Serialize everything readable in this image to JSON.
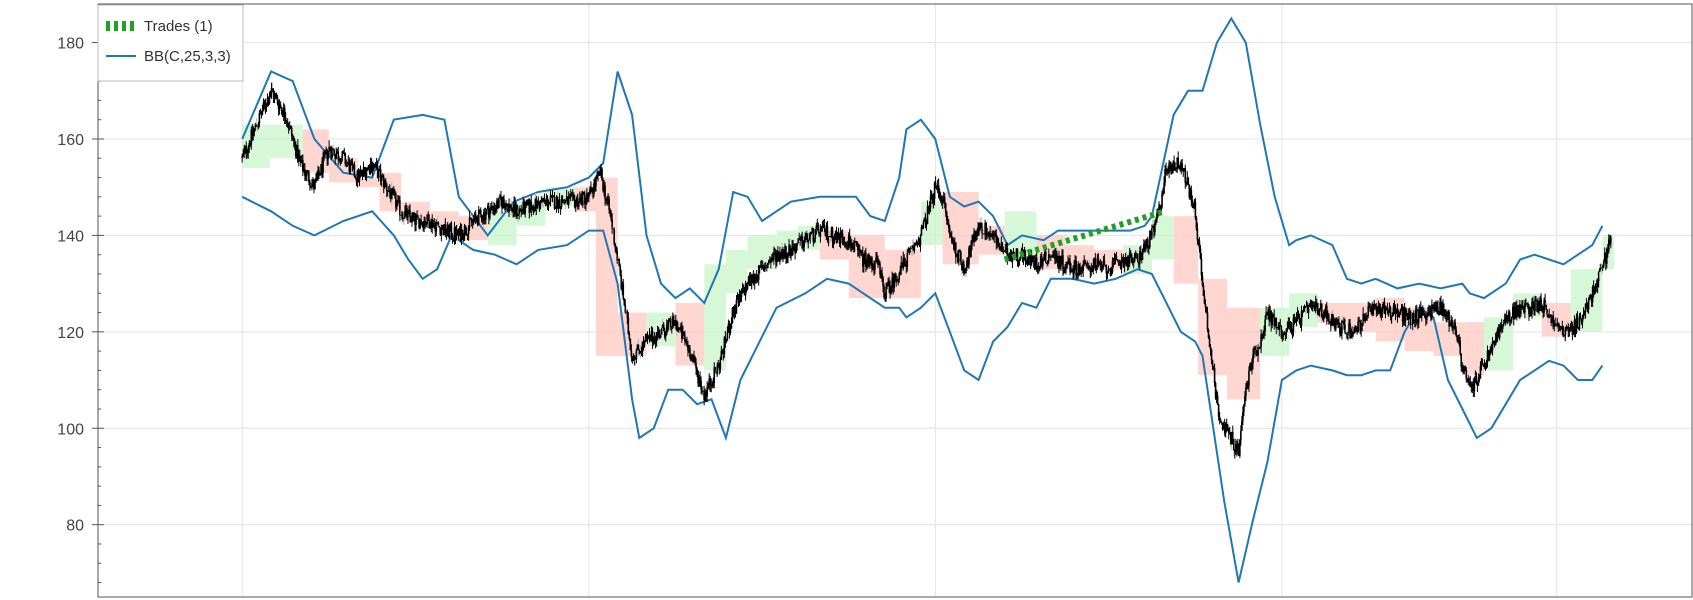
{
  "chart_data": {
    "type": "candlestick",
    "ylim": [
      65,
      188
    ],
    "xlim": [
      0,
      100
    ],
    "yticks": [
      80,
      100,
      120,
      140,
      160,
      180
    ],
    "xgrid": [
      5,
      29,
      53,
      77,
      96
    ],
    "grid": true,
    "legend": {
      "position": "top-left",
      "entries": [
        {
          "label": "Trades (1)",
          "color": "#1fa21f",
          "style": "dashed"
        },
        {
          "label": "BB(C,25,3,3)",
          "color": "#1f77b4",
          "style": "solid"
        }
      ]
    },
    "trade": {
      "entry": [
        57.8,
        135
      ],
      "exit": [
        68.9,
        145
      ]
    },
    "upper_band": [
      [
        5,
        160
      ],
      [
        7,
        174
      ],
      [
        8.5,
        172
      ],
      [
        10,
        160
      ],
      [
        12,
        153
      ],
      [
        14,
        152
      ],
      [
        15.5,
        164
      ],
      [
        17.5,
        165
      ],
      [
        19,
        164
      ],
      [
        20,
        148
      ],
      [
        22,
        140
      ],
      [
        23.8,
        147
      ],
      [
        25.5,
        149
      ],
      [
        27.5,
        150
      ],
      [
        29,
        152
      ],
      [
        30,
        155
      ],
      [
        31,
        174
      ],
      [
        32,
        165
      ],
      [
        33,
        140
      ],
      [
        34,
        130
      ],
      [
        35,
        127
      ],
      [
        36,
        129
      ],
      [
        37,
        126
      ],
      [
        38,
        133
      ],
      [
        39,
        149
      ],
      [
        40,
        148
      ],
      [
        41,
        143
      ],
      [
        42,
        145
      ],
      [
        43,
        147
      ],
      [
        45,
        148
      ],
      [
        47.5,
        148
      ],
      [
        48.5,
        144
      ],
      [
        49.5,
        143
      ],
      [
        50.5,
        152
      ],
      [
        51,
        162
      ],
      [
        52,
        164
      ],
      [
        53,
        160
      ],
      [
        54,
        148
      ],
      [
        55,
        146
      ],
      [
        56,
        147
      ],
      [
        57,
        144
      ],
      [
        58,
        138
      ],
      [
        59,
        140
      ],
      [
        60.5,
        139
      ],
      [
        61.5,
        141
      ],
      [
        63,
        141
      ],
      [
        64.5,
        141
      ],
      [
        66.5,
        141
      ],
      [
        67.5,
        142
      ],
      [
        68,
        144
      ],
      [
        69,
        158
      ],
      [
        69.5,
        165
      ],
      [
        70.5,
        170
      ],
      [
        71.5,
        170
      ],
      [
        72.5,
        180
      ],
      [
        73.5,
        185
      ],
      [
        74.5,
        180
      ],
      [
        75.5,
        163
      ],
      [
        76.5,
        148
      ],
      [
        77.5,
        138
      ],
      [
        78,
        139
      ],
      [
        79,
        140
      ],
      [
        80.5,
        138
      ],
      [
        81.5,
        131
      ],
      [
        82.5,
        130
      ],
      [
        83.5,
        131
      ],
      [
        85,
        129
      ],
      [
        86.5,
        130
      ],
      [
        88,
        129
      ],
      [
        89.5,
        130
      ],
      [
        90,
        128
      ],
      [
        91,
        127
      ],
      [
        92.5,
        130
      ],
      [
        93.5,
        135
      ],
      [
        94.5,
        136
      ],
      [
        95.5,
        135
      ],
      [
        96.5,
        134
      ],
      [
        97.5,
        136
      ],
      [
        98.5,
        138
      ],
      [
        99.2,
        142
      ]
    ],
    "lower_band": [
      [
        5,
        148
      ],
      [
        7,
        145
      ],
      [
        8.5,
        142
      ],
      [
        10,
        140
      ],
      [
        12,
        143
      ],
      [
        14,
        145
      ],
      [
        15.5,
        140
      ],
      [
        16.5,
        135
      ],
      [
        17.5,
        131
      ],
      [
        18.5,
        133
      ],
      [
        19.5,
        140
      ],
      [
        21,
        137
      ],
      [
        22.5,
        136
      ],
      [
        24,
        134
      ],
      [
        25.5,
        137
      ],
      [
        27.5,
        138
      ],
      [
        29,
        141
      ],
      [
        30,
        141
      ],
      [
        31,
        130
      ],
      [
        32,
        106
      ],
      [
        32.5,
        98
      ],
      [
        33.5,
        100
      ],
      [
        34.5,
        108
      ],
      [
        35.5,
        108
      ],
      [
        36.5,
        105
      ],
      [
        37.5,
        106
      ],
      [
        38.5,
        98
      ],
      [
        39.5,
        110
      ],
      [
        41,
        119
      ],
      [
        42,
        125
      ],
      [
        44,
        128
      ],
      [
        45.5,
        131
      ],
      [
        47,
        130
      ],
      [
        48.5,
        127
      ],
      [
        49.5,
        125
      ],
      [
        50.5,
        125
      ],
      [
        51,
        123
      ],
      [
        52,
        125
      ],
      [
        53,
        128
      ],
      [
        54,
        120
      ],
      [
        55,
        112
      ],
      [
        56,
        110
      ],
      [
        57,
        118
      ],
      [
        58,
        121
      ],
      [
        59,
        126
      ],
      [
        60,
        125
      ],
      [
        61,
        131
      ],
      [
        62.5,
        131
      ],
      [
        64,
        130
      ],
      [
        65.5,
        131
      ],
      [
        67,
        133
      ],
      [
        68,
        132
      ],
      [
        69,
        126
      ],
      [
        70,
        120
      ],
      [
        71,
        118
      ],
      [
        71.5,
        115
      ],
      [
        72,
        105
      ],
      [
        73,
        85
      ],
      [
        74,
        68
      ],
      [
        75,
        81
      ],
      [
        76,
        93
      ],
      [
        77,
        110
      ],
      [
        78,
        112
      ],
      [
        79,
        113
      ],
      [
        80.5,
        112
      ],
      [
        81.5,
        111
      ],
      [
        82.5,
        111
      ],
      [
        83.5,
        112
      ],
      [
        84.5,
        112
      ],
      [
        85.5,
        120
      ],
      [
        86.5,
        125
      ],
      [
        87.5,
        123
      ],
      [
        88.5,
        110
      ],
      [
        89.5,
        104
      ],
      [
        90.5,
        98
      ],
      [
        91.5,
        100
      ],
      [
        92.5,
        105
      ],
      [
        93.5,
        110
      ],
      [
        94.5,
        112
      ],
      [
        95.5,
        114
      ],
      [
        96.5,
        113
      ],
      [
        97.5,
        110
      ],
      [
        98.5,
        110
      ],
      [
        99.2,
        113
      ]
    ],
    "boxes": [
      [
        5,
        6.9,
        154,
        163
      ],
      [
        6.9,
        9.2,
        156,
        163
      ],
      [
        9.2,
        11,
        153,
        162
      ],
      [
        11,
        13,
        151,
        156
      ],
      [
        13,
        14.5,
        150,
        152
      ],
      [
        14.5,
        16,
        145,
        153
      ],
      [
        16,
        18,
        143,
        147
      ],
      [
        18,
        20,
        142,
        145
      ],
      [
        20,
        22,
        139,
        144
      ],
      [
        22,
        24,
        138,
        145
      ],
      [
        24,
        26,
        142,
        147
      ],
      [
        26,
        28,
        146,
        150
      ],
      [
        28,
        29.5,
        145,
        150
      ],
      [
        29.5,
        31,
        115,
        152
      ],
      [
        31,
        33,
        115,
        124
      ],
      [
        33,
        35,
        117,
        124
      ],
      [
        35,
        37,
        113,
        126
      ],
      [
        37,
        38.5,
        112,
        134
      ],
      [
        38.5,
        40,
        128,
        137
      ],
      [
        40,
        42,
        133,
        140
      ],
      [
        42,
        43.5,
        137,
        141
      ],
      [
        43.5,
        45,
        137,
        142
      ],
      [
        45,
        47,
        135,
        141
      ],
      [
        47,
        49.5,
        127,
        140
      ],
      [
        49.5,
        52,
        127,
        137
      ],
      [
        52,
        53.5,
        138,
        147
      ],
      [
        53.5,
        56,
        134,
        149
      ],
      [
        56,
        57.8,
        136,
        142
      ],
      [
        57.8,
        60,
        135,
        145
      ],
      [
        60,
        62,
        133,
        140
      ],
      [
        62,
        64,
        133,
        138
      ],
      [
        64,
        66,
        133,
        137
      ],
      [
        66,
        68,
        132,
        138
      ],
      [
        68,
        69.5,
        135,
        144
      ],
      [
        69.5,
        71.2,
        130,
        144
      ],
      [
        71.2,
        73.2,
        111,
        131
      ],
      [
        73.2,
        75.5,
        106,
        125
      ],
      [
        75.5,
        77.5,
        115,
        125
      ],
      [
        77.5,
        79.5,
        121,
        128
      ],
      [
        79.5,
        81.5,
        122,
        126
      ],
      [
        81.5,
        83.5,
        120,
        126
      ],
      [
        83.5,
        85.5,
        118,
        127
      ],
      [
        85.5,
        87.5,
        116,
        125
      ],
      [
        87.5,
        89.5,
        115,
        122
      ],
      [
        89.5,
        91,
        111,
        122
      ],
      [
        91,
        93,
        112,
        123
      ],
      [
        93,
        95,
        123,
        128
      ],
      [
        95,
        97,
        119,
        126
      ],
      [
        97,
        99.2,
        120,
        133
      ],
      [
        99.2,
        100,
        133,
        140
      ]
    ],
    "anchors": [
      [
        5,
        156
      ],
      [
        6,
        163
      ],
      [
        7,
        170
      ],
      [
        8,
        165
      ],
      [
        9,
        155
      ],
      [
        10,
        150
      ],
      [
        11,
        158
      ],
      [
        12,
        156
      ],
      [
        13,
        152
      ],
      [
        14,
        155
      ],
      [
        15,
        150
      ],
      [
        16,
        145
      ],
      [
        17,
        143
      ],
      [
        18,
        143
      ],
      [
        19,
        141
      ],
      [
        20,
        140
      ],
      [
        21,
        143
      ],
      [
        22,
        145
      ],
      [
        23,
        147
      ],
      [
        24,
        145
      ],
      [
        25,
        146
      ],
      [
        26,
        147
      ],
      [
        27,
        147
      ],
      [
        28,
        147
      ],
      [
        29,
        148
      ],
      [
        29.8,
        153
      ],
      [
        30.5,
        144
      ],
      [
        31,
        135
      ],
      [
        31.5,
        125
      ],
      [
        32,
        115
      ],
      [
        33,
        118
      ],
      [
        34,
        120
      ],
      [
        35,
        122
      ],
      [
        36,
        116
      ],
      [
        37,
        107
      ],
      [
        38,
        113
      ],
      [
        39,
        124
      ],
      [
        40,
        130
      ],
      [
        41,
        133
      ],
      [
        42,
        136
      ],
      [
        43,
        137
      ],
      [
        44,
        139
      ],
      [
        45,
        141
      ],
      [
        46,
        140
      ],
      [
        47,
        139
      ],
      [
        48,
        135
      ],
      [
        49,
        134
      ],
      [
        49.5,
        128
      ],
      [
        50,
        130
      ],
      [
        51,
        135
      ],
      [
        52,
        140
      ],
      [
        53,
        150
      ],
      [
        53.5,
        148
      ],
      [
        54,
        140
      ],
      [
        55,
        133
      ],
      [
        56,
        142
      ],
      [
        57,
        140
      ],
      [
        57.8,
        136
      ],
      [
        59,
        136
      ],
      [
        60,
        134
      ],
      [
        61,
        136
      ],
      [
        62,
        134
      ],
      [
        63,
        133
      ],
      [
        64,
        134
      ],
      [
        65,
        133
      ],
      [
        66,
        135
      ],
      [
        67,
        135
      ],
      [
        68,
        140
      ],
      [
        68.5,
        145
      ],
      [
        69,
        154
      ],
      [
        70,
        155
      ],
      [
        70.5,
        150
      ],
      [
        71,
        145
      ],
      [
        71.5,
        130
      ],
      [
        72,
        118
      ],
      [
        72.5,
        105
      ],
      [
        73,
        100
      ],
      [
        73.5,
        98
      ],
      [
        74,
        95
      ],
      [
        74.5,
        108
      ],
      [
        75,
        115
      ],
      [
        75.5,
        118
      ],
      [
        76,
        124
      ],
      [
        77,
        120
      ],
      [
        78,
        122
      ],
      [
        79,
        125
      ],
      [
        80,
        124
      ],
      [
        81,
        121
      ],
      [
        82,
        120
      ],
      [
        83,
        124
      ],
      [
        84,
        125
      ],
      [
        85,
        124
      ],
      [
        86,
        123
      ],
      [
        87,
        124
      ],
      [
        88,
        125
      ],
      [
        89,
        121
      ],
      [
        89.5,
        113
      ],
      [
        90,
        108
      ],
      [
        90.5,
        110
      ],
      [
        91,
        113
      ],
      [
        92,
        120
      ],
      [
        93,
        124
      ],
      [
        94,
        125
      ],
      [
        95,
        126
      ],
      [
        96,
        121
      ],
      [
        97,
        120
      ],
      [
        98,
        124
      ],
      [
        99,
        132
      ],
      [
        99.5,
        136
      ],
      [
        99.8,
        141
      ]
    ]
  }
}
